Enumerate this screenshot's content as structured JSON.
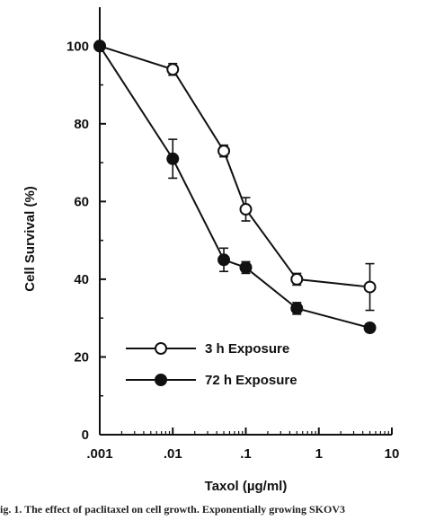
{
  "chart_data": {
    "type": "line",
    "xlabel": "Taxol (µg/ml)",
    "ylabel": "Cell Survival (%)",
    "xscale": "log",
    "xlim": [
      0.001,
      10
    ],
    "ylim": [
      0,
      110
    ],
    "xticks": [
      {
        "value": 0.001,
        "label": ".001"
      },
      {
        "value": 0.01,
        "label": ".01"
      },
      {
        "value": 0.1,
        "label": ".1"
      },
      {
        "value": 1,
        "label": "1"
      },
      {
        "value": 10,
        "label": "10"
      }
    ],
    "yticks": [
      {
        "value": 0,
        "label": "0"
      },
      {
        "value": 20,
        "label": "20"
      },
      {
        "value": 40,
        "label": "40"
      },
      {
        "value": 60,
        "label": "60"
      },
      {
        "value": 80,
        "label": "80"
      },
      {
        "value": 100,
        "label": "100"
      }
    ],
    "grid": false,
    "legend_position": "bottom-left",
    "series": [
      {
        "name": "3 h Exposure",
        "marker": "open-circle",
        "points": [
          {
            "x": 0.001,
            "y": 100,
            "err": 0
          },
          {
            "x": 0.01,
            "y": 94,
            "err": 1.5
          },
          {
            "x": 0.05,
            "y": 73,
            "err": 1.5
          },
          {
            "x": 0.1,
            "y": 58,
            "err": 3
          },
          {
            "x": 0.5,
            "y": 40,
            "err": 1.5
          },
          {
            "x": 5,
            "y": 38,
            "err": 6
          }
        ]
      },
      {
        "name": "72 h Exposure",
        "marker": "filled-circle",
        "points": [
          {
            "x": 0.001,
            "y": 100,
            "err": 0
          },
          {
            "x": 0.01,
            "y": 71,
            "err": 5
          },
          {
            "x": 0.05,
            "y": 45,
            "err": 3
          },
          {
            "x": 0.1,
            "y": 43,
            "err": 1.5
          },
          {
            "x": 0.5,
            "y": 32.5,
            "err": 1.5
          },
          {
            "x": 5,
            "y": 27.5,
            "err": 1
          }
        ]
      }
    ]
  },
  "caption": "ig. 1. The effect of paclitaxel on cell growth. Exponentially growing SKOV3"
}
